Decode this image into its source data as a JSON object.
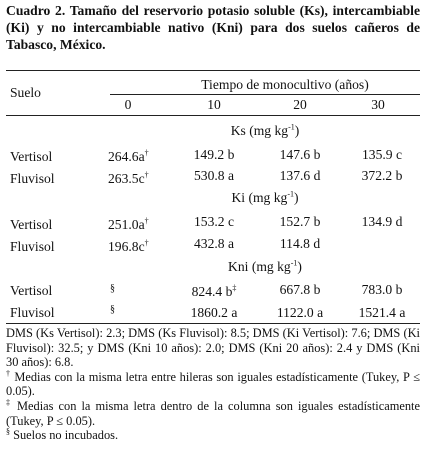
{
  "caption": {
    "label": "Cuadro 2.",
    "text": " Tamaño del reservorio potasio soluble (Ks), intercambiable (Ki) y no intercambiable nativo (Kni) para dos suelos cañeros de Tabasco, México."
  },
  "header": {
    "row_label": "Suelo",
    "group_label": "Tiempo de monocultivo (años)",
    "columns": [
      "0",
      "10",
      "20",
      "30"
    ]
  },
  "sections": [
    {
      "title": "Ks (mg kg",
      "title_sup": "-1",
      "title_close": ")",
      "rows": [
        {
          "soil": "Vertisol",
          "v0": "264.6a",
          "v0_sup": "†",
          "v10": "149.2 b",
          "v10_sup": "",
          "v20": "147.6 b",
          "v30": "135.9 c"
        },
        {
          "soil": "Fluvisol",
          "v0": "263.5c",
          "v0_sup": "†",
          "v10": "530.8 a",
          "v10_sup": "",
          "v20": "137.6 d",
          "v30": "372.2 b"
        }
      ]
    },
    {
      "title": "Ki (mg kg",
      "title_sup": "-1",
      "title_close": ")",
      "rows": [
        {
          "soil": "Vertisol",
          "v0": "251.0a",
          "v0_sup": "†",
          "v10": "153.2 c",
          "v10_sup": "",
          "v20": "152.7 b",
          "v30": "134.9 d"
        },
        {
          "soil": "Fluvisol",
          "v0": "196.8c",
          "v0_sup": "†",
          "v10": "432.8 a",
          "v10_sup": "",
          "v20": "114.8 d",
          "v30": ""
        }
      ]
    },
    {
      "title": "Kni (mg kg",
      "title_sup": "-1",
      "title_close": ")",
      "rows": [
        {
          "soil": "Vertisol",
          "v0": "§",
          "v0_sup": "",
          "v10": "824.4 b",
          "v10_sup": "‡",
          "v20": "667.8 b",
          "v30": "783.0 b"
        },
        {
          "soil": "Fluvisol",
          "v0": "§",
          "v0_sup": "",
          "v10": "1860.2 a",
          "v10_sup": "",
          "v20": "1122.0 a",
          "v30": "1521.4 a"
        }
      ]
    }
  ],
  "notes": {
    "dms": "DMS (Ks Vertisol): 2.3; DMS (Ks Fluvisol): 8.5; DMS (Ki Vertisol): 7.6; DMS (Ki Fluvisol): 32.5; y DMS (Kni 10 años): 2.0; DMS (Kni 20 años): 2.4 y DMS (Kni 30 años): 6.8.",
    "dagger_mark": "†",
    "dagger_text": " Medias con la misma letra entre hileras son iguales estadísticamente (Tukey, P ≤ 0.05).",
    "ddagger_mark": "‡",
    "ddagger_text": " Medias con la misma letra dentro de la columna son iguales estadísticamente (Tukey, P ≤ 0.05).",
    "section_mark": "§",
    "section_text": " Suelos no incubados."
  }
}
